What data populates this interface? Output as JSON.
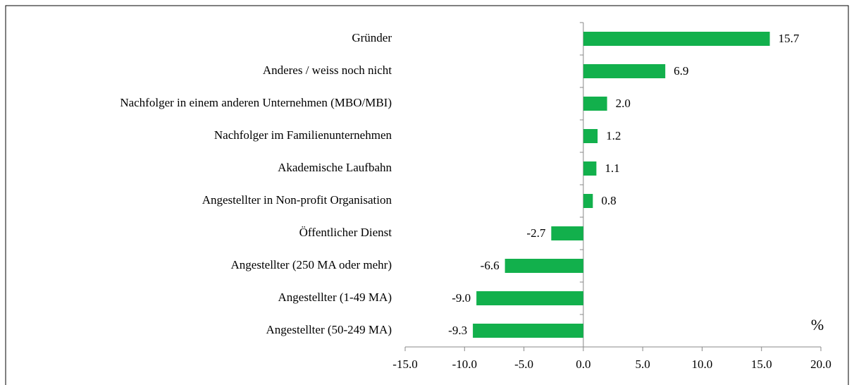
{
  "chart_data": {
    "type": "barh",
    "categories": [
      "Gründer",
      "Anderes / weiss noch nicht",
      "Nachfolger in einem anderen Unternehmen (MBO/MBI)",
      "Nachfolger im Familienunternehmen",
      "Akademische Laufbahn",
      "Angestellter in Non-profit Organisation",
      "Öffentlicher Dienst",
      "Angestellter (250 MA oder mehr)",
      "Angestellter (1-49 MA)",
      "Angestellter (50-249 MA)"
    ],
    "values": [
      15.7,
      6.9,
      2.0,
      1.2,
      1.1,
      0.8,
      -2.7,
      -6.6,
      -9.0,
      -9.3
    ],
    "value_labels": [
      "15.7",
      "6.9",
      "2.0",
      "1.2",
      "1.1",
      "0.8",
      "-2.7",
      "-6.6",
      "-9.0",
      "-9.3"
    ],
    "color": "#12b04c",
    "unit_annotation": "%",
    "xlim": [
      -15,
      20
    ],
    "xticks": [
      {
        "value": -15,
        "label": "-15.0"
      },
      {
        "value": -10,
        "label": "-10.0"
      },
      {
        "value": -5,
        "label": "-5.0"
      },
      {
        "value": 0,
        "label": "0.0"
      },
      {
        "value": 5,
        "label": "5.0"
      },
      {
        "value": 10,
        "label": "10.0"
      },
      {
        "value": 15,
        "label": "15.0"
      },
      {
        "value": 20,
        "label": "20.0"
      }
    ],
    "grid": false
  }
}
